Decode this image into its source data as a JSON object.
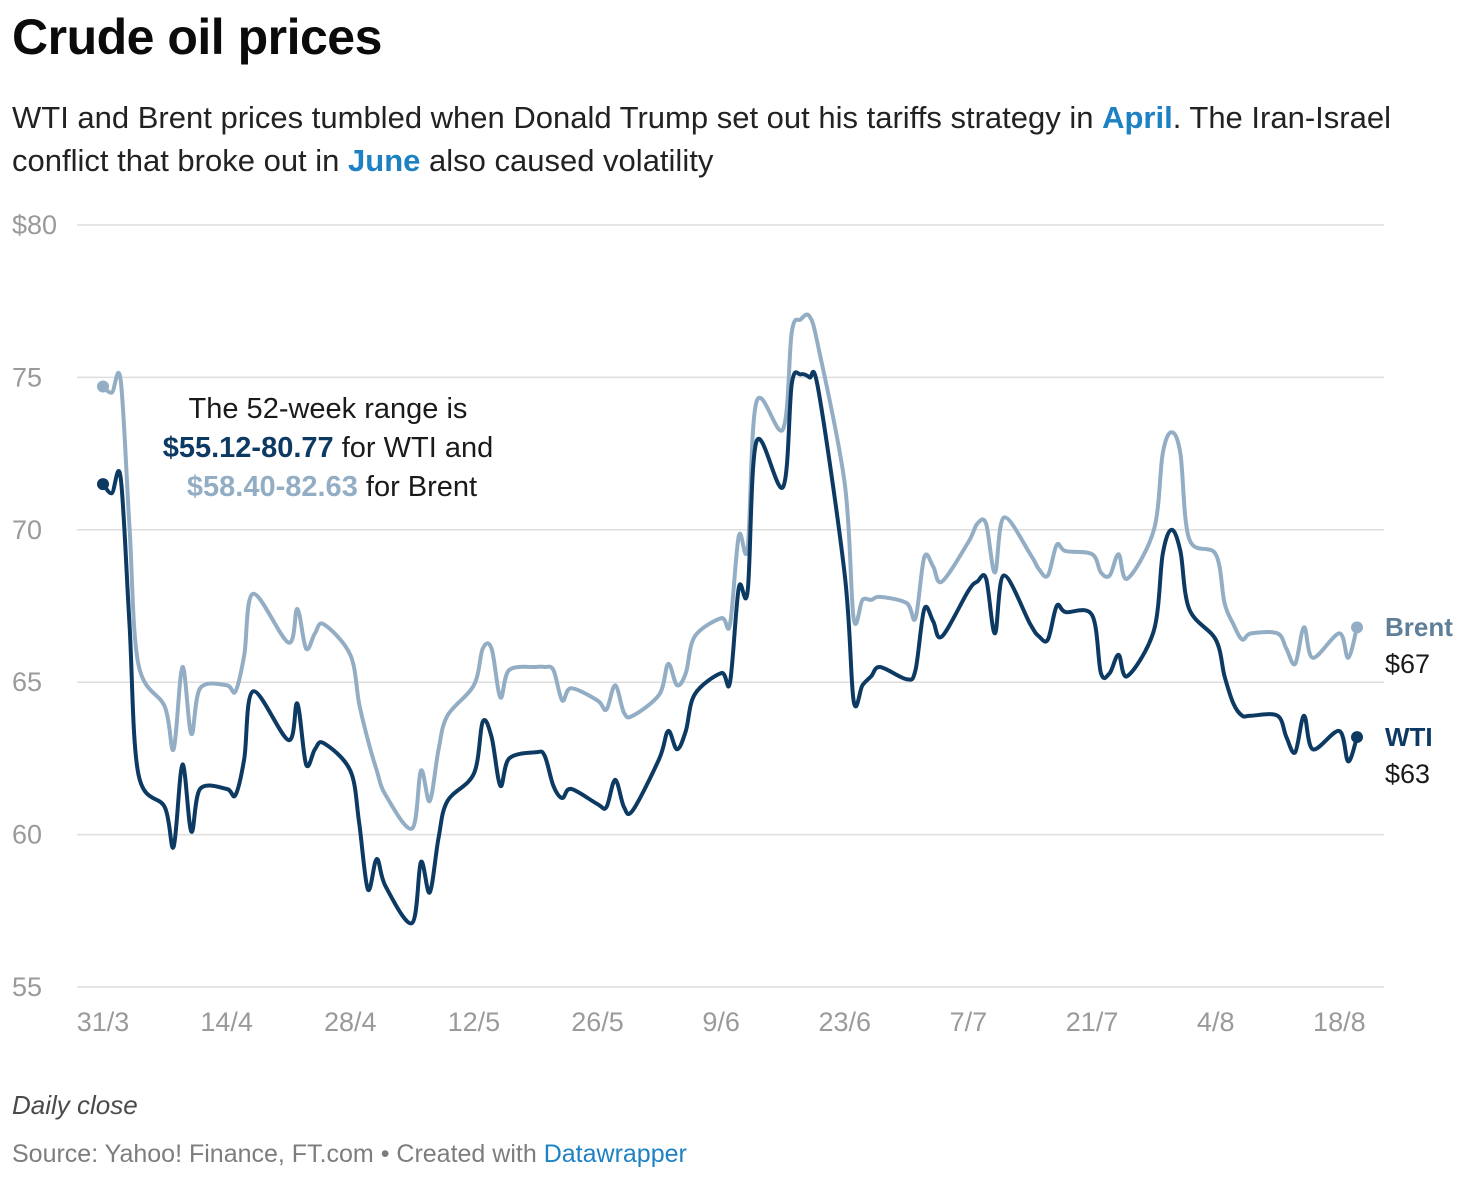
{
  "title": "Crude oil prices",
  "subtitle": {
    "part1": "WTI and Brent prices tumbled when Donald Trump set out his tariffs strategy in ",
    "highlight1": "April",
    "part2": ". The Iran-Israel conflict that broke out in ",
    "highlight2": "June",
    "part3": " also caused volatility"
  },
  "annotation": {
    "line1": "The 52-week range is",
    "wti_range": "$55.12-80.77",
    "line2_suffix": " for WTI and",
    "brent_range": "$58.40-82.63",
    "line3_suffix": " for Brent"
  },
  "notes": "Daily close",
  "source": {
    "text": "Source: Yahoo! Finance, FT.com • Created with ",
    "link": "Datawrapper"
  },
  "colors": {
    "wti": "#0d3a62",
    "brent": "#93aec4",
    "highlight": "#1d81c3",
    "grid": "#dedede",
    "axis_text": "#9a9a9a"
  },
  "chart_data": {
    "type": "line",
    "xlabel": "",
    "ylabel": "",
    "ylim": [
      55,
      80
    ],
    "y_ticks": [
      {
        "value": 80,
        "label": "$80"
      },
      {
        "value": 75,
        "label": "75"
      },
      {
        "value": 70,
        "label": "70"
      },
      {
        "value": 65,
        "label": "65"
      },
      {
        "value": 60,
        "label": "60"
      },
      {
        "value": 55,
        "label": "55"
      }
    ],
    "x_ticks": [
      "31/3",
      "14/4",
      "28/4",
      "12/5",
      "26/5",
      "9/6",
      "23/6",
      "7/7",
      "21/7",
      "4/8",
      "18/8"
    ],
    "x_start": "31/3",
    "grid": true,
    "series": [
      {
        "name": "Brent",
        "end_label": "$67",
        "points": [
          [
            "31/3",
            74.7
          ],
          [
            "1/4",
            74.5
          ],
          [
            "2/4",
            74.9
          ],
          [
            "3/4",
            70.1
          ],
          [
            "4/4",
            65.6
          ],
          [
            "7/4",
            64.2
          ],
          [
            "8/4",
            62.8
          ],
          [
            "9/4",
            65.5
          ],
          [
            "10/4",
            63.3
          ],
          [
            "11/4",
            64.8
          ],
          [
            "14/4",
            64.9
          ],
          [
            "15/4",
            64.7
          ],
          [
            "16/4",
            65.9
          ],
          [
            "17/4",
            67.9
          ],
          [
            "21/4",
            66.3
          ],
          [
            "22/4",
            67.4
          ],
          [
            "23/4",
            66.1
          ],
          [
            "24/4",
            66.6
          ],
          [
            "25/4",
            66.9
          ],
          [
            "28/4",
            65.9
          ],
          [
            "29/4",
            64.3
          ],
          [
            "30/4",
            63.1
          ],
          [
            "1/5",
            62.1
          ],
          [
            "2/5",
            61.3
          ],
          [
            "5/5",
            60.2
          ],
          [
            "6/5",
            62.1
          ],
          [
            "7/5",
            61.1
          ],
          [
            "8/5",
            62.8
          ],
          [
            "9/5",
            63.9
          ],
          [
            "12/5",
            64.9
          ],
          [
            "13/5",
            66.1
          ],
          [
            "14/5",
            66.1
          ],
          [
            "15/5",
            64.5
          ],
          [
            "16/5",
            65.4
          ],
          [
            "19/5",
            65.5
          ],
          [
            "20/5",
            65.5
          ],
          [
            "21/5",
            65.4
          ],
          [
            "22/5",
            64.4
          ],
          [
            "23/5",
            64.8
          ],
          [
            "26/5",
            64.4
          ],
          [
            "27/5",
            64.1
          ],
          [
            "28/5",
            64.9
          ],
          [
            "29/5",
            64.0
          ],
          [
            "30/5",
            63.9
          ],
          [
            "2/6",
            64.6
          ],
          [
            "3/6",
            65.6
          ],
          [
            "4/6",
            64.9
          ],
          [
            "5/6",
            65.3
          ],
          [
            "6/6",
            66.5
          ],
          [
            "9/6",
            67.1
          ],
          [
            "10/6",
            66.9
          ],
          [
            "11/6",
            69.8
          ],
          [
            "12/6",
            69.4
          ],
          [
            "13/6",
            74.2
          ],
          [
            "16/6",
            73.3
          ],
          [
            "17/6",
            76.5
          ],
          [
            "18/6",
            76.9
          ],
          [
            "19/6",
            77.0
          ],
          [
            "20/6",
            76.0
          ],
          [
            "23/6",
            71.5
          ],
          [
            "24/6",
            67.1
          ],
          [
            "25/6",
            67.7
          ],
          [
            "26/6",
            67.7
          ],
          [
            "27/6",
            67.8
          ],
          [
            "30/6",
            67.6
          ],
          [
            "1/7",
            67.1
          ],
          [
            "2/7",
            69.1
          ],
          [
            "3/7",
            68.8
          ],
          [
            "4/7",
            68.3
          ],
          [
            "7/7",
            69.6
          ],
          [
            "8/7",
            70.2
          ],
          [
            "9/7",
            70.2
          ],
          [
            "10/7",
            68.6
          ],
          [
            "11/7",
            70.4
          ],
          [
            "14/7",
            69.2
          ],
          [
            "15/7",
            68.7
          ],
          [
            "16/7",
            68.5
          ],
          [
            "17/7",
            69.5
          ],
          [
            "18/7",
            69.3
          ],
          [
            "21/7",
            69.2
          ],
          [
            "22/7",
            68.6
          ],
          [
            "23/7",
            68.5
          ],
          [
            "24/7",
            69.2
          ],
          [
            "25/7",
            68.4
          ],
          [
            "28/7",
            70.0
          ],
          [
            "29/7",
            72.5
          ],
          [
            "30/7",
            73.2
          ],
          [
            "31/7",
            72.5
          ],
          [
            "1/8",
            69.7
          ],
          [
            "4/8",
            69.2
          ],
          [
            "5/8",
            67.6
          ],
          [
            "6/8",
            66.9
          ],
          [
            "7/8",
            66.4
          ],
          [
            "8/8",
            66.6
          ],
          [
            "11/8",
            66.6
          ],
          [
            "12/8",
            66.1
          ],
          [
            "13/8",
            65.6
          ],
          [
            "14/8",
            66.8
          ],
          [
            "15/8",
            65.8
          ],
          [
            "18/8",
            66.6
          ],
          [
            "19/8",
            65.8
          ],
          [
            "20/8",
            66.8
          ]
        ]
      },
      {
        "name": "WTI",
        "end_label": "$63",
        "points": [
          [
            "31/3",
            71.5
          ],
          [
            "1/4",
            71.2
          ],
          [
            "2/4",
            71.7
          ],
          [
            "3/4",
            66.9
          ],
          [
            "4/4",
            62.0
          ],
          [
            "7/4",
            60.9
          ],
          [
            "8/4",
            59.6
          ],
          [
            "9/4",
            62.3
          ],
          [
            "10/4",
            60.1
          ],
          [
            "11/4",
            61.5
          ],
          [
            "14/4",
            61.5
          ],
          [
            "15/4",
            61.3
          ],
          [
            "16/4",
            62.5
          ],
          [
            "17/4",
            64.7
          ],
          [
            "21/4",
            63.1
          ],
          [
            "22/4",
            64.3
          ],
          [
            "23/4",
            62.3
          ],
          [
            "24/4",
            62.8
          ],
          [
            "25/4",
            63.0
          ],
          [
            "28/4",
            62.1
          ],
          [
            "29/4",
            60.4
          ],
          [
            "30/4",
            58.2
          ],
          [
            "1/5",
            59.2
          ],
          [
            "2/5",
            58.3
          ],
          [
            "5/5",
            57.1
          ],
          [
            "6/5",
            59.1
          ],
          [
            "7/5",
            58.1
          ],
          [
            "8/5",
            59.9
          ],
          [
            "9/5",
            61.1
          ],
          [
            "12/5",
            62.0
          ],
          [
            "13/5",
            63.7
          ],
          [
            "14/5",
            63.2
          ],
          [
            "15/5",
            61.6
          ],
          [
            "16/5",
            62.5
          ],
          [
            "19/5",
            62.7
          ],
          [
            "20/5",
            62.6
          ],
          [
            "21/5",
            61.6
          ],
          [
            "22/5",
            61.2
          ],
          [
            "23/5",
            61.5
          ],
          [
            "26/5",
            61.0
          ],
          [
            "27/5",
            60.9
          ],
          [
            "28/5",
            61.8
          ],
          [
            "29/5",
            60.9
          ],
          [
            "30/5",
            60.8
          ],
          [
            "2/6",
            62.5
          ],
          [
            "3/6",
            63.4
          ],
          [
            "4/6",
            62.8
          ],
          [
            "5/6",
            63.4
          ],
          [
            "6/6",
            64.6
          ],
          [
            "9/6",
            65.3
          ],
          [
            "10/6",
            65.0
          ],
          [
            "11/6",
            68.1
          ],
          [
            "12/6",
            68.0
          ],
          [
            "13/6",
            72.9
          ],
          [
            "16/6",
            71.4
          ],
          [
            "17/6",
            74.8
          ],
          [
            "18/6",
            75.1
          ],
          [
            "19/6",
            75.0
          ],
          [
            "20/6",
            74.6
          ],
          [
            "23/6",
            68.5
          ],
          [
            "24/6",
            64.4
          ],
          [
            "25/6",
            64.9
          ],
          [
            "26/6",
            65.2
          ],
          [
            "27/6",
            65.5
          ],
          [
            "30/6",
            65.1
          ],
          [
            "1/7",
            65.4
          ],
          [
            "2/7",
            67.4
          ],
          [
            "3/7",
            67.0
          ],
          [
            "4/7",
            66.5
          ],
          [
            "7/7",
            68.0
          ],
          [
            "8/7",
            68.3
          ],
          [
            "9/7",
            68.4
          ],
          [
            "10/7",
            66.6
          ],
          [
            "11/7",
            68.5
          ],
          [
            "14/7",
            66.9
          ],
          [
            "15/7",
            66.5
          ],
          [
            "16/7",
            66.4
          ],
          [
            "17/7",
            67.5
          ],
          [
            "18/7",
            67.3
          ],
          [
            "21/7",
            67.2
          ],
          [
            "22/7",
            65.3
          ],
          [
            "23/7",
            65.3
          ],
          [
            "24/7",
            65.9
          ],
          [
            "25/7",
            65.2
          ],
          [
            "28/7",
            66.7
          ],
          [
            "29/7",
            69.2
          ],
          [
            "30/7",
            70.0
          ],
          [
            "31/7",
            69.3
          ],
          [
            "1/8",
            67.4
          ],
          [
            "4/8",
            66.4
          ],
          [
            "5/8",
            65.2
          ],
          [
            "6/8",
            64.3
          ],
          [
            "7/8",
            63.9
          ],
          [
            "8/8",
            63.9
          ],
          [
            "11/8",
            63.9
          ],
          [
            "12/8",
            63.2
          ],
          [
            "13/8",
            62.7
          ],
          [
            "14/8",
            63.9
          ],
          [
            "15/8",
            62.8
          ],
          [
            "18/8",
            63.4
          ],
          [
            "19/8",
            62.4
          ],
          [
            "20/8",
            63.2
          ]
        ]
      }
    ]
  }
}
